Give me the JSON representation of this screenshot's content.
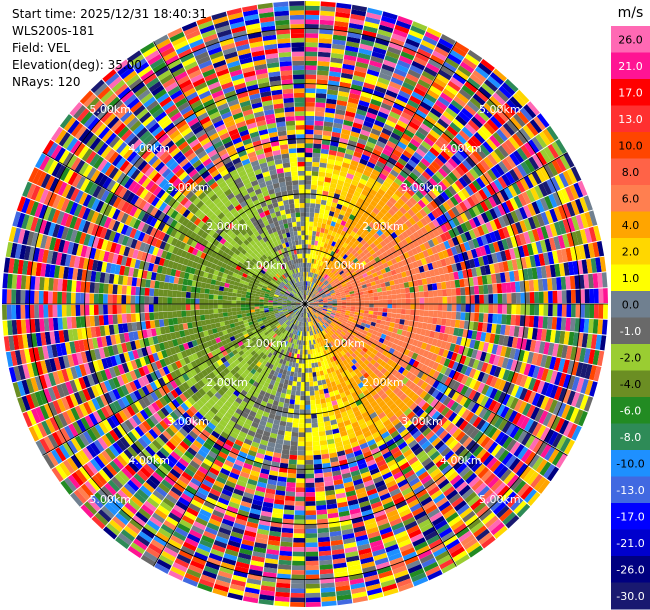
{
  "header": {
    "start_time": "Start time: 2025/12/31 18:40:31",
    "instrument": "WLS200s-181",
    "field": "Field: VEL",
    "elevation": "Elevation(deg): 35.00",
    "nrays": "NRays: 120"
  },
  "chart_data": {
    "type": "radar-ppi",
    "field": "VEL",
    "units": "m/s",
    "n_rays": 120,
    "elevation_deg": 35.0,
    "range_rings_km": [
      1,
      2,
      3,
      4,
      5
    ],
    "range_labels": [
      "1.00km",
      "2.00km",
      "3.00km",
      "4.00km",
      "5.00km"
    ],
    "max_range_km": 5.5,
    "colorbar": {
      "unit": "m/s",
      "levels": [
        26.0,
        21.0,
        17.0,
        13.0,
        10.0,
        8.0,
        6.0,
        4.0,
        2.0,
        1.0,
        0.0,
        -1.0,
        -2.0,
        -4.0,
        -6.0,
        -8.0,
        -10.0,
        -13.0,
        -17.0,
        -21.0,
        -26.0,
        -30.0
      ],
      "tick_labels": [
        "26.0",
        "21.0",
        "17.0",
        "13.0",
        "10.0",
        "8.0",
        "6.0",
        "4.0",
        "2.0",
        "1.0",
        "0.0",
        "-1.0",
        "-2.0",
        "-4.0",
        "-6.0",
        "-8.0",
        "-10.0",
        "-13.0",
        "-17.0",
        "-21.0",
        "-26.0",
        "-30.0"
      ],
      "colors": [
        "#ff69b4",
        "#ff1493",
        "#ff0000",
        "#ff3030",
        "#ff4500",
        "#ff6347",
        "#ff7f50",
        "#ffa500",
        "#ffd700",
        "#ffff00",
        "#708090",
        "#696969",
        "#9acd32",
        "#6b8e23",
        "#228b22",
        "#2e8b57",
        "#1e90ff",
        "#4169e1",
        "#0000ff",
        "#0000cd",
        "#000080",
        "#191970"
      ]
    },
    "pattern": {
      "near_range_km": 2.8,
      "near_east": "positive (approaching ~0 to 6 m/s, yellow/orange)",
      "near_west": "negative (~ -2 to -8 m/s, green)",
      "far_range": "noise, all colors"
    }
  }
}
